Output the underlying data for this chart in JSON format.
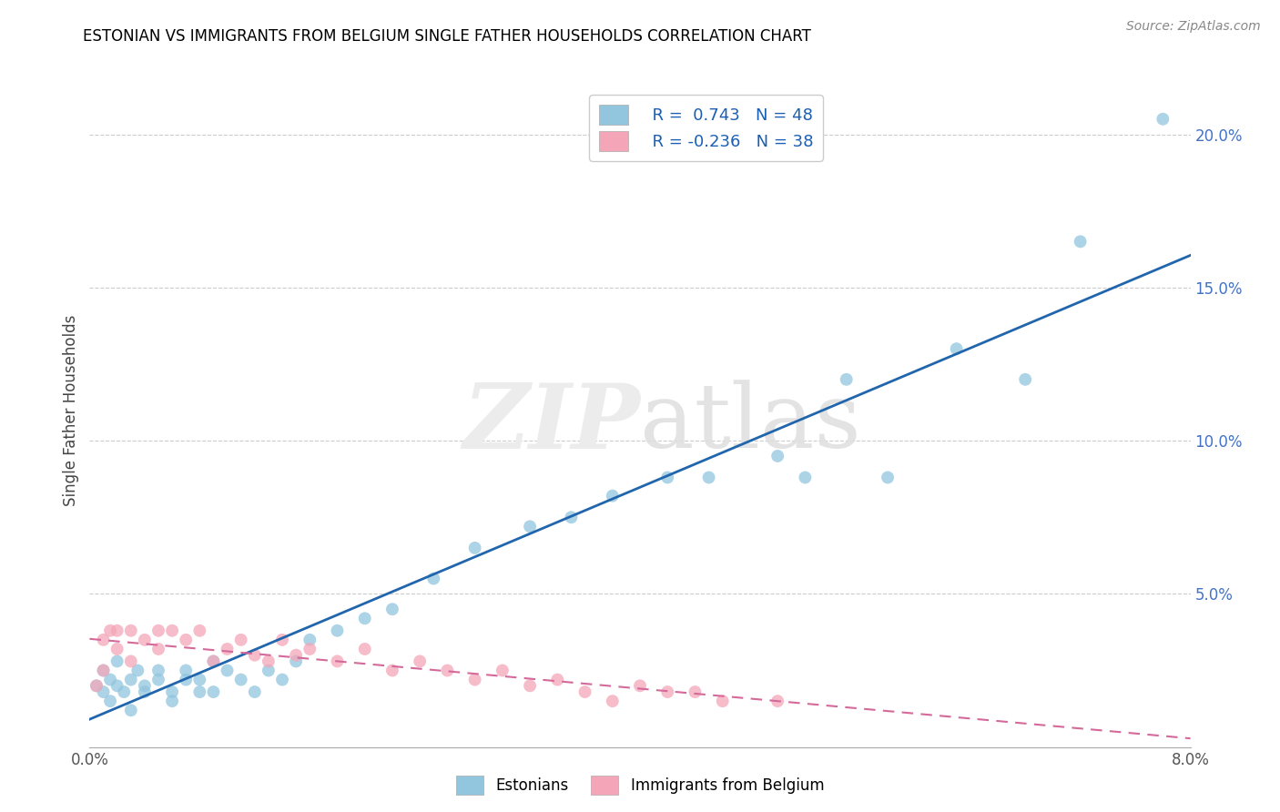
{
  "title": "ESTONIAN VS IMMIGRANTS FROM BELGIUM SINGLE FATHER HOUSEHOLDS CORRELATION CHART",
  "source": "Source: ZipAtlas.com",
  "ylabel": "Single Father Households",
  "legend_label1": "Estonians",
  "legend_label2": "Immigrants from Belgium",
  "R1": 0.743,
  "N1": 48,
  "R2": -0.236,
  "N2": 38,
  "blue_color": "#92c5de",
  "pink_color": "#f4a6b8",
  "blue_line_color": "#2166ac",
  "pink_line_color": "#d4699a",
  "xmin": 0.0,
  "xmax": 0.08,
  "ymin": 0.0,
  "ymax": 0.22,
  "estonians_x": [
    0.0005,
    0.001,
    0.001,
    0.0015,
    0.0015,
    0.002,
    0.002,
    0.0025,
    0.003,
    0.003,
    0.0035,
    0.004,
    0.004,
    0.005,
    0.005,
    0.006,
    0.006,
    0.007,
    0.007,
    0.008,
    0.008,
    0.009,
    0.009,
    0.01,
    0.011,
    0.012,
    0.013,
    0.014,
    0.015,
    0.016,
    0.018,
    0.02,
    0.022,
    0.025,
    0.028,
    0.032,
    0.035,
    0.038,
    0.042,
    0.045,
    0.05,
    0.052,
    0.055,
    0.058,
    0.063,
    0.068,
    0.072,
    0.078
  ],
  "estonians_y": [
    0.02,
    0.018,
    0.025,
    0.022,
    0.015,
    0.02,
    0.028,
    0.018,
    0.022,
    0.012,
    0.025,
    0.02,
    0.018,
    0.022,
    0.025,
    0.018,
    0.015,
    0.022,
    0.025,
    0.018,
    0.022,
    0.028,
    0.018,
    0.025,
    0.022,
    0.018,
    0.025,
    0.022,
    0.028,
    0.035,
    0.038,
    0.042,
    0.045,
    0.055,
    0.065,
    0.072,
    0.075,
    0.082,
    0.088,
    0.088,
    0.095,
    0.088,
    0.12,
    0.088,
    0.13,
    0.12,
    0.165,
    0.205
  ],
  "belgium_x": [
    0.0005,
    0.001,
    0.001,
    0.0015,
    0.002,
    0.002,
    0.003,
    0.003,
    0.004,
    0.005,
    0.005,
    0.006,
    0.007,
    0.008,
    0.009,
    0.01,
    0.011,
    0.012,
    0.013,
    0.014,
    0.015,
    0.016,
    0.018,
    0.02,
    0.022,
    0.024,
    0.026,
    0.028,
    0.03,
    0.032,
    0.034,
    0.036,
    0.038,
    0.04,
    0.042,
    0.044,
    0.046,
    0.05
  ],
  "belgium_y": [
    0.02,
    0.025,
    0.035,
    0.038,
    0.032,
    0.038,
    0.028,
    0.038,
    0.035,
    0.038,
    0.032,
    0.038,
    0.035,
    0.038,
    0.028,
    0.032,
    0.035,
    0.03,
    0.028,
    0.035,
    0.03,
    0.032,
    0.028,
    0.032,
    0.025,
    0.028,
    0.025,
    0.022,
    0.025,
    0.02,
    0.022,
    0.018,
    0.015,
    0.02,
    0.018,
    0.018,
    0.015,
    0.015
  ]
}
